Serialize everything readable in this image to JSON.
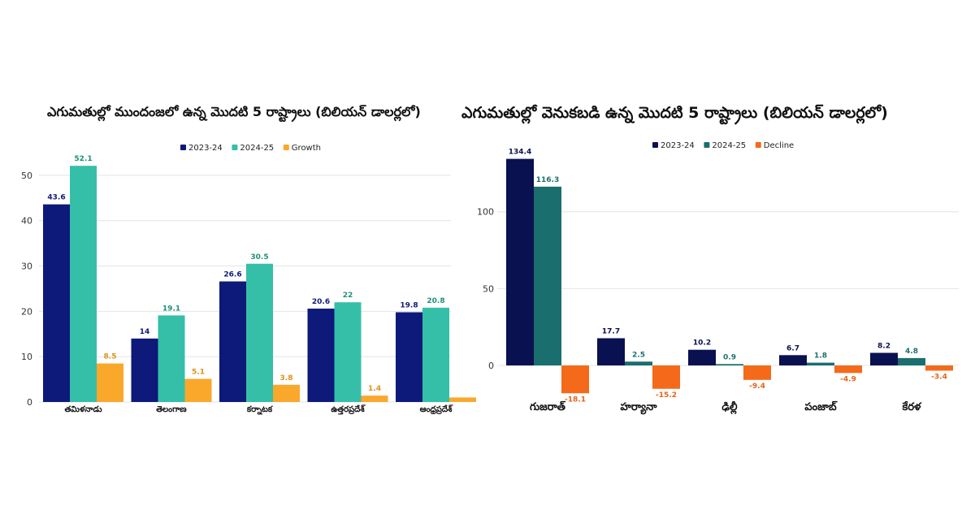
{
  "chart_data": [
    {
      "type": "bar",
      "title": "ఎగుమతుల్లో ముందంజలో ఉన్న మొదటి 5 రాష్ట్రాలు (బిలియన్ డాలర్లలో)",
      "categories": [
        "తమిళనాడు",
        "తెలంగాణ",
        "కర్నాటక",
        "ఉత్తరప్రదేశ్",
        "ఆంధ్రప్రదేశ్"
      ],
      "series": [
        {
          "name": "2023-24",
          "color": "#0d1a7a",
          "values": [
            43.6,
            14,
            26.6,
            20.6,
            19.8
          ],
          "labels": [
            "43.6",
            "14",
            "26.6",
            "20.6",
            "19.8"
          ]
        },
        {
          "name": "2024-25",
          "color": "#35bfa8",
          "values": [
            52.1,
            19.1,
            30.5,
            22,
            20.8
          ],
          "labels": [
            "52.1",
            "19.1",
            "30.5",
            "22",
            "20.8"
          ]
        },
        {
          "name": "Growth",
          "color": "#f9a82c",
          "values": [
            8.5,
            5.1,
            3.8,
            1.4,
            1
          ],
          "labels": [
            "8.5",
            "5.1",
            "3.8",
            "1.4",
            ""
          ]
        }
      ],
      "yticks": [
        "0",
        "10",
        "20",
        "30",
        "40",
        "50"
      ],
      "ylim": [
        0,
        55
      ],
      "legend_position": "top-center"
    },
    {
      "type": "bar",
      "title": "ఎగుమతుల్లో వెనుకబడి ఉన్న మొదటి 5 రాష్ట్రాలు (బిలియన్ డాలర్లలో)",
      "categories": [
        "గుజరాత్",
        "హర్యానా",
        "ఢిల్లీ",
        "పంజాబ్",
        "కేరళ"
      ],
      "series": [
        {
          "name": "2023-24",
          "color": "#0a1150",
          "values": [
            134.4,
            17.7,
            10.2,
            6.7,
            8.2
          ],
          "labels": [
            "134.4",
            "17.7",
            "10.2",
            "6.7",
            "8.2"
          ]
        },
        {
          "name": "2024-25",
          "color": "#1b6e6e",
          "values": [
            116.3,
            2.5,
            0.9,
            1.8,
            4.8
          ],
          "labels": [
            "116.3",
            "2.5",
            "0.9",
            "1.8",
            "4.8"
          ]
        },
        {
          "name": "Decline",
          "color": "#f56a1a",
          "values": [
            -18.1,
            -15.2,
            -9.4,
            -4.9,
            -3.4
          ],
          "labels": [
            "-18.1",
            "-15.2",
            "-9.4",
            "-4.9",
            "-3.4"
          ]
        }
      ],
      "yticks": [
        "0",
        "50",
        "100"
      ],
      "ylim": [
        -25,
        140
      ],
      "legend_position": "top-center"
    }
  ]
}
